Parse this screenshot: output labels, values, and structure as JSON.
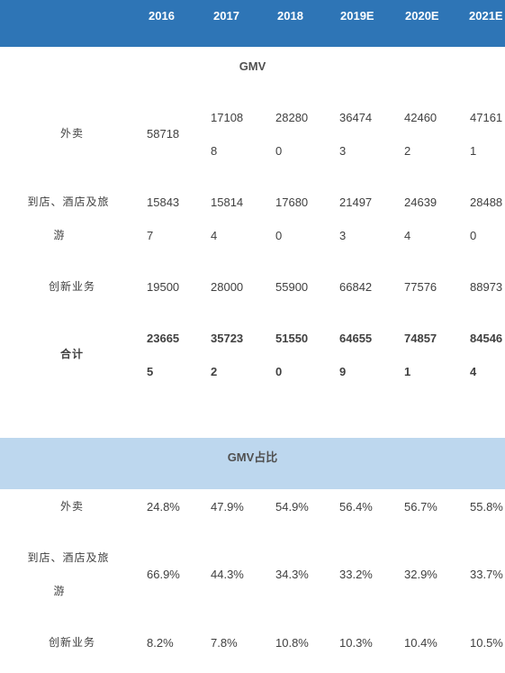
{
  "header": {
    "years": [
      "2016",
      "2017",
      "2018",
      "2019E",
      "2020E",
      "2021E"
    ]
  },
  "gmv": {
    "title": "GMV",
    "rows": [
      {
        "label": [
          "外卖"
        ],
        "values": [
          [
            "58718"
          ],
          [
            "17108",
            "8"
          ],
          [
            "28280",
            "0"
          ],
          [
            "36474",
            "3"
          ],
          [
            "42460",
            "2"
          ],
          [
            "47161",
            "1"
          ]
        ]
      },
      {
        "label": [
          "到店、酒店及旅",
          "游"
        ],
        "values": [
          [
            "15843",
            "7"
          ],
          [
            "15814",
            "4"
          ],
          [
            "17680",
            "0"
          ],
          [
            "21497",
            "3"
          ],
          [
            "24639",
            "4"
          ],
          [
            "28488",
            "0"
          ]
        ]
      },
      {
        "label": [
          "创新业务"
        ],
        "values": [
          [
            "19500"
          ],
          [
            "28000"
          ],
          [
            "55900"
          ],
          [
            "66842"
          ],
          [
            "77576"
          ],
          [
            "88973"
          ]
        ]
      },
      {
        "label": [
          "合计"
        ],
        "values": [
          [
            "23665",
            "5"
          ],
          [
            "35723",
            "2"
          ],
          [
            "51550",
            "0"
          ],
          [
            "64655",
            "9"
          ],
          [
            "74857",
            "1"
          ],
          [
            "84546",
            "4"
          ]
        ]
      }
    ]
  },
  "share": {
    "title": "GMV占比",
    "rows": [
      {
        "label": [
          "外卖"
        ],
        "values": [
          "24.8%",
          "47.9%",
          "54.9%",
          "56.4%",
          "56.7%",
          "55.8%"
        ]
      },
      {
        "label": [
          "到店、酒店及旅",
          "游"
        ],
        "values": [
          "66.9%",
          "44.3%",
          "34.3%",
          "33.2%",
          "32.9%",
          "33.7%"
        ]
      },
      {
        "label": [
          "创新业务"
        ],
        "values": [
          "8.2%",
          "7.8%",
          "10.8%",
          "10.3%",
          "10.4%",
          "10.5%"
        ]
      }
    ]
  },
  "colors": {
    "header_bg": "#2e75b6",
    "band_bg": "#bdd7ee",
    "text": "#404040"
  }
}
